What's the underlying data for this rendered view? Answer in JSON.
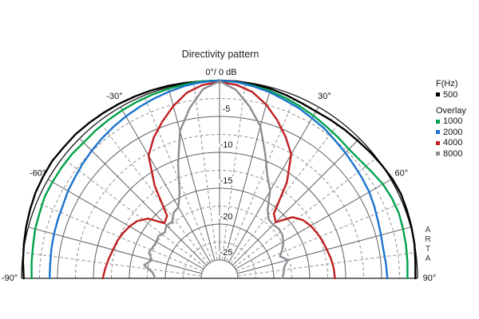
{
  "title": "Directivity pattern",
  "polar": {
    "apex_label": "0°/ 0 dB",
    "angle_labels": [
      {
        "angle": -30,
        "text": "-30°"
      },
      {
        "angle": 30,
        "text": "30°"
      },
      {
        "angle": -60,
        "text": "-60°"
      },
      {
        "angle": 60,
        "text": "60°"
      },
      {
        "angle": -90,
        "text": "-90°"
      },
      {
        "angle": 90,
        "text": "90°"
      }
    ],
    "db_tick_labels": [
      "-5",
      "-10",
      "-15",
      "-20",
      "-25"
    ]
  },
  "legend": {
    "header": "F(Hz)",
    "overlay_header": "Overlay",
    "items": [
      {
        "label": "500",
        "color": "#000000"
      },
      {
        "label": "1000",
        "color": "#00A14B"
      },
      {
        "label": "2000",
        "color": "#1B74CE"
      },
      {
        "label": "4000",
        "color": "#C01E20"
      },
      {
        "label": "8000",
        "color": "#8A8E94"
      }
    ]
  },
  "watermark": "ARTA",
  "chart_data": {
    "type": "line",
    "subtype": "polar-semicircle-directivity",
    "title": "Directivity pattern",
    "angle_unit": "degrees",
    "radial_axis": {
      "unit": "dB",
      "max_db": 0,
      "ring_step_db": 5,
      "minor_ring_step_db": 2.5,
      "inner_db": -25,
      "tick_labels": [
        -5,
        -10,
        -15,
        -20,
        -25
      ]
    },
    "angular_axis": {
      "min_deg": -90,
      "max_deg": 90,
      "major_step_deg": 15,
      "minor_step_deg": 7.5
    },
    "grid": {
      "solid_color": "#5f5f5f",
      "dashed_color": "#909090",
      "frame_color": "#1a1a1a"
    },
    "angles": [
      -90,
      -85,
      -80,
      -75,
      -70,
      -65,
      -60,
      -55,
      -50,
      -45,
      -40,
      -35,
      -30,
      -25,
      -20,
      -15,
      -10,
      -5,
      0,
      5,
      10,
      15,
      20,
      25,
      30,
      35,
      40,
      45,
      50,
      55,
      60,
      65,
      70,
      75,
      80,
      85,
      90
    ],
    "series": [
      {
        "name": "500",
        "freq_hz": 500,
        "color": "#000000",
        "values": [
          -0.3,
          -0.1,
          0.1,
          0.3,
          0.5,
          0.7,
          0.8,
          0.9,
          0.8,
          0.8,
          0.7,
          0.6,
          0.5,
          0.4,
          0.3,
          0.2,
          0.1,
          0,
          0,
          0,
          -0.1,
          -0.2,
          -0.4,
          -0.6,
          -0.7,
          -0.6,
          -0.5,
          -0.4,
          -0.2,
          0,
          0.2,
          0.3,
          0.2,
          0.1,
          0,
          -0.2,
          -0.3
        ]
      },
      {
        "name": "1000",
        "freq_hz": 1000,
        "color": "#00A14B",
        "values": [
          -1.4,
          -1.3,
          -1.2,
          -1.0,
          -0.9,
          -0.7,
          -0.7,
          -0.7,
          -0.7,
          -0.8,
          -0.7,
          -0.6,
          -0.5,
          -0.4,
          -0.3,
          -0.2,
          -0.1,
          0,
          0,
          -0.1,
          -0.3,
          -0.5,
          -0.8,
          -1.1,
          -1.4,
          -1.7,
          -1.9,
          -2.1,
          -2.0,
          -1.7,
          -1.3,
          -1.1,
          -1.0,
          -1.1,
          -1.2,
          -1.3,
          -1.4
        ]
      },
      {
        "name": "2000",
        "freq_hz": 2000,
        "color": "#1B74CE",
        "values": [
          -3.9,
          -3.9,
          -3.8,
          -3.7,
          -3.6,
          -3.5,
          -3.2,
          -3.0,
          -2.7,
          -2.4,
          -2.1,
          -1.8,
          -1.5,
          -1.2,
          -0.9,
          -0.6,
          -0.3,
          -0.1,
          0,
          -0.1,
          -0.4,
          -0.7,
          -1.1,
          -1.4,
          -1.8,
          -2.1,
          -2.5,
          -2.8,
          -3.1,
          -3.3,
          -3.5,
          -3.8,
          -4.1,
          -4.3,
          -4.4,
          -4.3,
          -4.2
        ]
      },
      {
        "name": "4000",
        "freq_hz": 4000,
        "color": "#C01E20",
        "values": [
          -11.3,
          -11.6,
          -11.9,
          -12.2,
          -12.4,
          -12.7,
          -13.1,
          -13.6,
          -14.6,
          -16.7,
          -16.2,
          -11.8,
          -7.8,
          -5.9,
          -4.3,
          -2.7,
          -1.3,
          -0.5,
          -0.2,
          -0.5,
          -1.2,
          -2.5,
          -4.1,
          -5.8,
          -7.6,
          -11.2,
          -15.8,
          -16.5,
          -14.3,
          -13.4,
          -12.9,
          -12.6,
          -12.3,
          -12.1,
          -11.8,
          -11.6,
          -11.5
        ]
      },
      {
        "name": "8000",
        "freq_hz": 8000,
        "color": "#8A8E94",
        "values": [
          -18.6,
          -18.2,
          -16.9,
          -17.8,
          -17.1,
          -17.3,
          -17.4,
          -17.2,
          -17.6,
          -17.1,
          -17.3,
          -16.4,
          -16.1,
          -14.4,
          -10.7,
          -6.3,
          -3.5,
          -1.1,
          -0.1,
          -1.2,
          -3.3,
          -5.6,
          -9.0,
          -11.8,
          -13.5,
          -15.9,
          -16.9,
          -17.0,
          -16.8,
          -16.9,
          -17.3,
          -17.9,
          -18.6,
          -17.7,
          -18.4,
          -18.6,
          -18.8
        ]
      }
    ]
  }
}
